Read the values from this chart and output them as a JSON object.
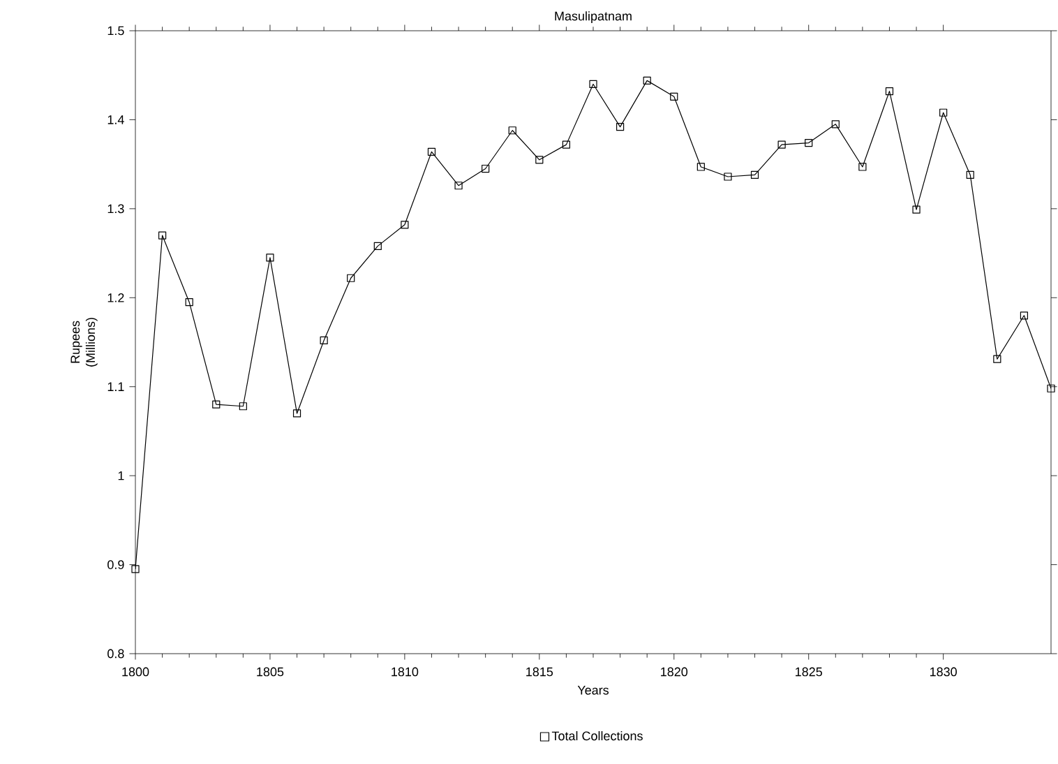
{
  "chart_data": {
    "type": "line",
    "title": "Masulipatnam",
    "xlabel": "Years",
    "ylabel": "Rupees (Millions)",
    "x": [
      1800,
      1801,
      1802,
      1803,
      1804,
      1805,
      1806,
      1807,
      1808,
      1809,
      1810,
      1811,
      1812,
      1813,
      1814,
      1815,
      1816,
      1817,
      1818,
      1819,
      1820,
      1821,
      1822,
      1823,
      1824,
      1825,
      1826,
      1827,
      1828,
      1829,
      1830,
      1831,
      1832,
      1833,
      1834
    ],
    "series": [
      {
        "name": "Total Collections",
        "color": "#000000",
        "values": [
          0.895,
          1.27,
          1.195,
          1.08,
          1.078,
          1.245,
          1.07,
          1.152,
          1.222,
          1.258,
          1.282,
          1.364,
          1.326,
          1.345,
          1.388,
          1.355,
          1.372,
          1.44,
          1.392,
          1.444,
          1.426,
          1.347,
          1.336,
          1.338,
          1.372,
          1.374,
          1.395,
          1.347,
          1.432,
          1.299,
          1.408,
          1.338,
          1.131,
          1.18,
          1.098
        ]
      }
    ],
    "xlim": [
      1800,
      1834
    ],
    "ylim": [
      0.8,
      1.5
    ],
    "xticks": [
      1800,
      1805,
      1810,
      1815,
      1820,
      1825,
      1830
    ],
    "yticks": [
      0.8,
      0.9,
      1,
      1.1,
      1.2,
      1.3,
      1.4,
      1.5
    ],
    "marker": "square",
    "line_style": "solid",
    "legend": "bottom",
    "grid": false
  }
}
